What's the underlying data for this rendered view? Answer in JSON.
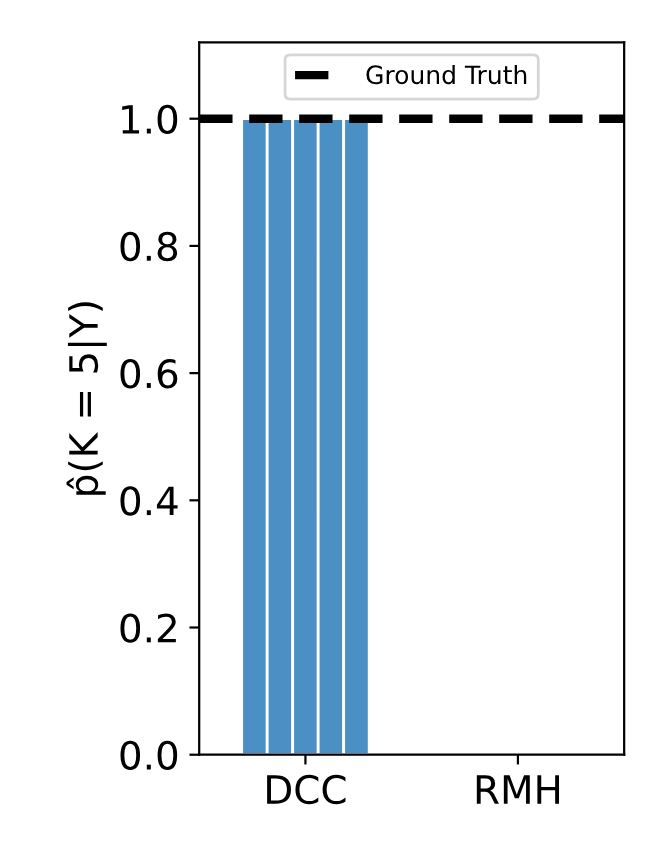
{
  "chart_data": {
    "type": "bar",
    "ylabel": "p̂(K = 5|Y)",
    "categories": [
      "DCC",
      "RMH"
    ],
    "series": [
      {
        "color": "#4a90c4",
        "values": [
          1.0,
          0
        ]
      },
      {
        "color": "#4a90c4",
        "values": [
          1.0,
          0
        ]
      },
      {
        "color": "#4a90c4",
        "values": [
          1.0,
          0
        ]
      },
      {
        "color": "#4a90c4",
        "values": [
          1.0,
          0
        ]
      },
      {
        "color": "#4a90c4",
        "values": [
          1.0,
          0
        ]
      }
    ],
    "ylim": [
      0,
      1.12
    ],
    "yticks": [
      {
        "value": 0,
        "label": "0.0"
      },
      {
        "value": 0.2,
        "label": "0.2"
      },
      {
        "value": 0.4,
        "label": "0.4"
      },
      {
        "value": 0.6,
        "label": "0.6"
      },
      {
        "value": 0.8,
        "label": "0.8"
      },
      {
        "value": 1,
        "label": "1.0"
      }
    ],
    "ref_lines": [
      {
        "axis": "y",
        "value": 1.0,
        "label": "Ground Truth",
        "color": "#000000",
        "line_style": "dashed"
      }
    ],
    "legend": "top",
    "grid": false
  }
}
